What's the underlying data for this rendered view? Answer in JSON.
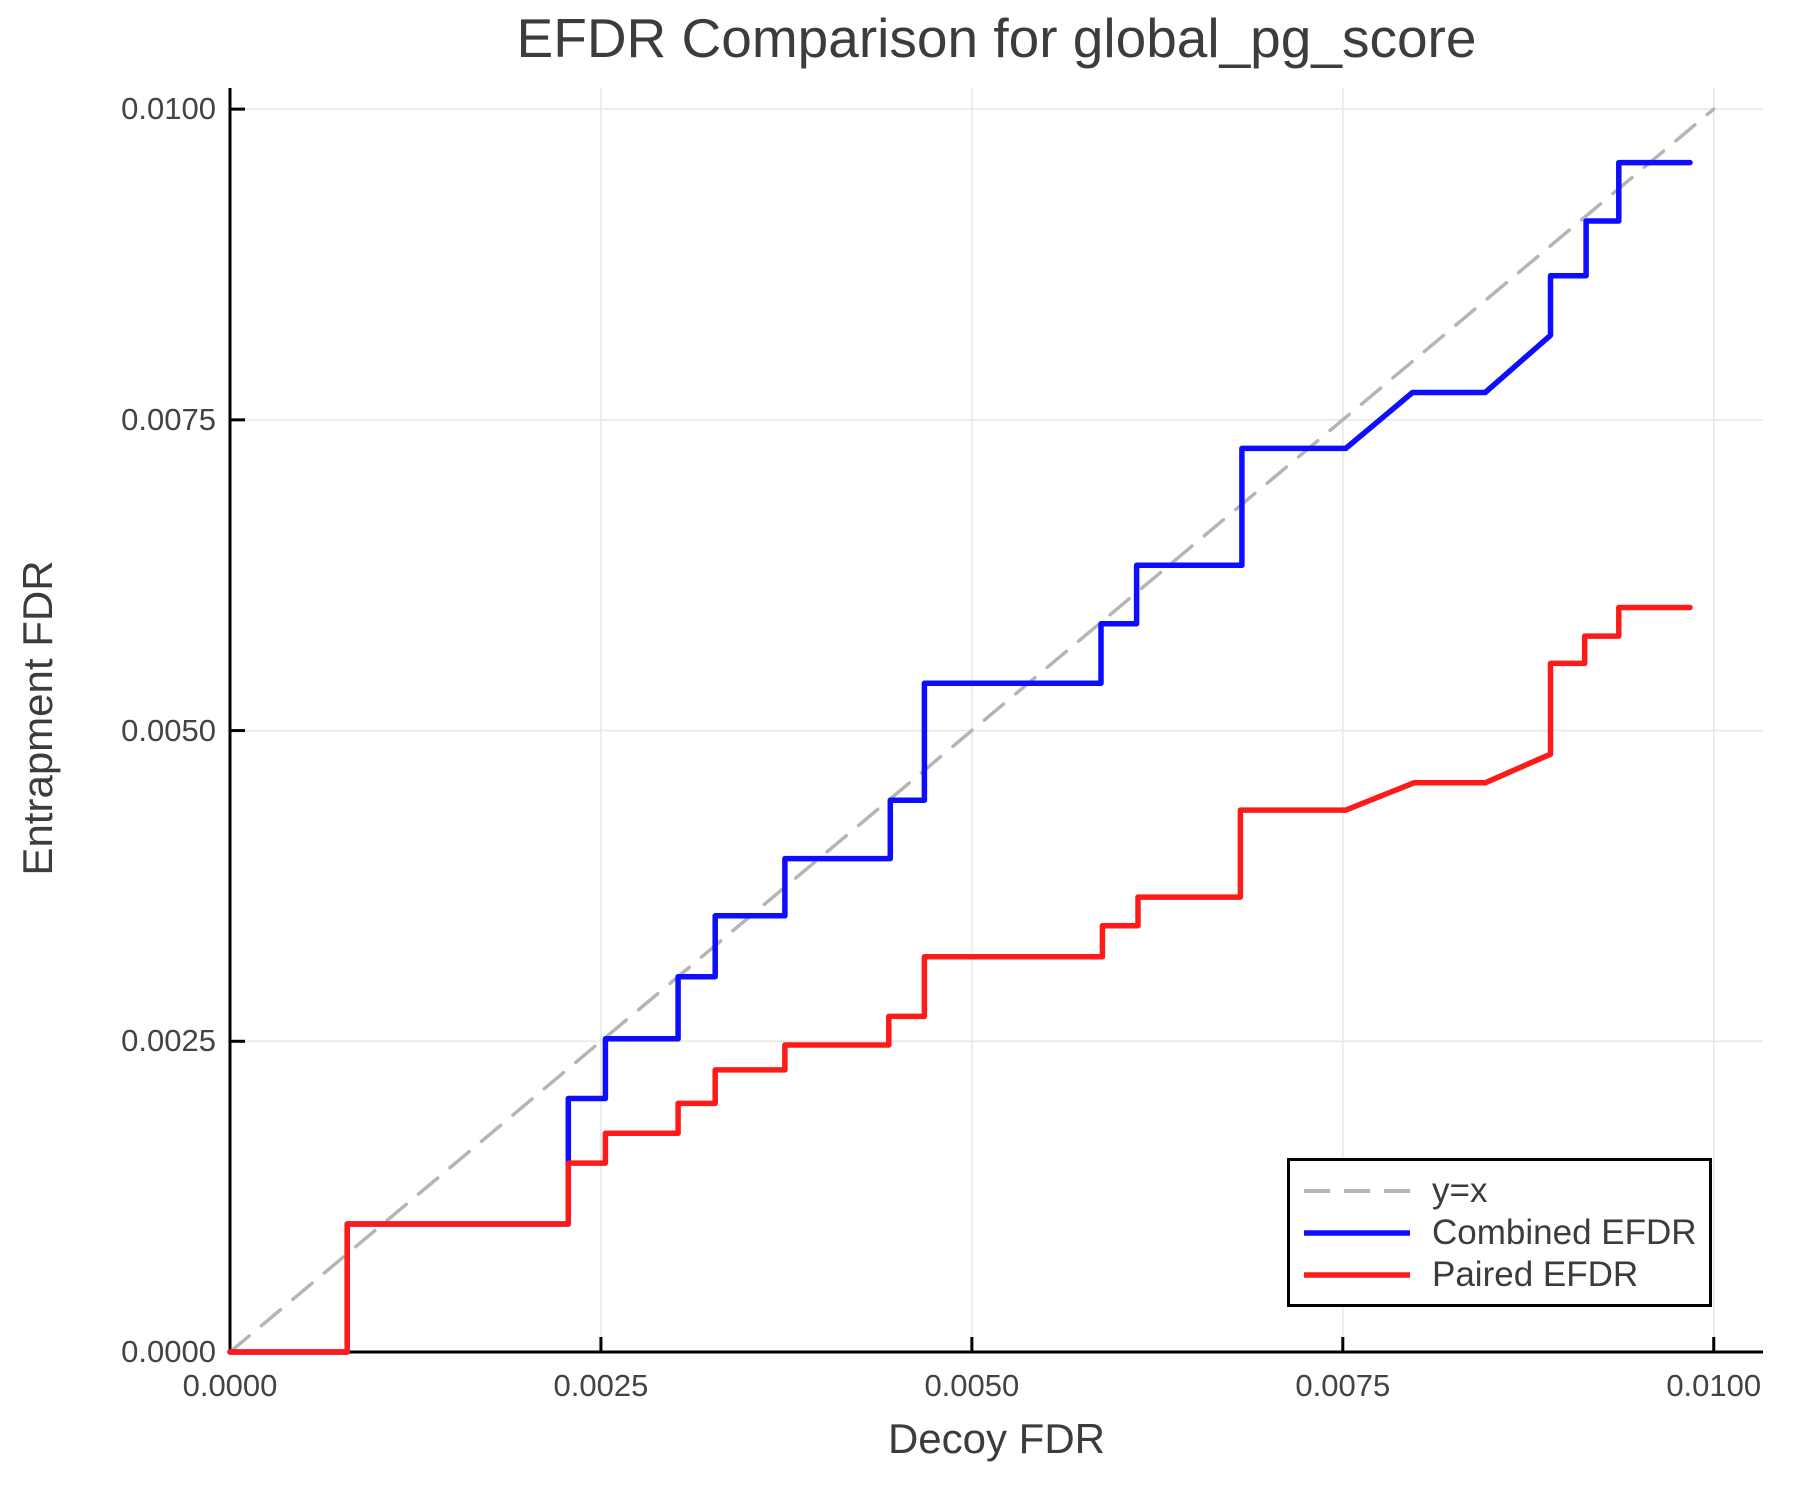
{
  "figure": {
    "background": "#ffffff"
  },
  "chart_data": {
    "type": "line",
    "title": "EFDR Comparison for global_pg_score",
    "xlabel": "Decoy FDR",
    "ylabel": "Entrapment FDR",
    "xlim": [
      0,
      0.010332
    ],
    "ylim": [
      0,
      0.01017
    ],
    "grid": true,
    "legend_position": "bottom-right",
    "colors": {
      "grid": "#e6e6e6",
      "axis": "#000000",
      "text": "#3c3c3c",
      "tick_text": "#434343",
      "reference": "#b5b5b5",
      "combined": "#0d0dff",
      "paired": "#ff1a1a",
      "legend_border": "#000000",
      "legend_background": "#ffffff"
    },
    "x_ticks": {
      "values": [
        0,
        0.0025,
        0.005,
        0.0075,
        0.01
      ],
      "labels": [
        "0.0000",
        "0.0025",
        "0.0050",
        "0.0075",
        "0.0100"
      ]
    },
    "y_ticks": {
      "values": [
        0,
        0.0025,
        0.005,
        0.0075,
        0.01
      ],
      "labels": [
        "0.0000",
        "0.0025",
        "0.0050",
        "0.0075",
        "0.0100"
      ]
    },
    "series": [
      {
        "name": "y=x",
        "role": "reference",
        "color": "#b5b5b5",
        "dashed": true,
        "width": 3.5,
        "points": [
          [
            0,
            0
          ],
          [
            0.01,
            0.01
          ]
        ]
      },
      {
        "name": "Combined EFDR",
        "role": "combined",
        "color": "#0d0dff",
        "dashed": false,
        "width": 5.5,
        "points": [
          [
            0.0,
            0.0
          ],
          [
            0.00079,
            0.0
          ],
          [
            0.00079,
            0.00103
          ],
          [
            0.00228,
            0.00103
          ],
          [
            0.00228,
            0.00204
          ],
          [
            0.00253,
            0.00204
          ],
          [
            0.00253,
            0.00252
          ],
          [
            0.00302,
            0.00252
          ],
          [
            0.00302,
            0.00302
          ],
          [
            0.00327,
            0.00302
          ],
          [
            0.00327,
            0.00351
          ],
          [
            0.00374,
            0.00351
          ],
          [
            0.00374,
            0.00397
          ],
          [
            0.00445,
            0.00397
          ],
          [
            0.00445,
            0.00444
          ],
          [
            0.00468,
            0.00444
          ],
          [
            0.00468,
            0.00538
          ],
          [
            0.00587,
            0.00538
          ],
          [
            0.00587,
            0.00586
          ],
          [
            0.00611,
            0.00586
          ],
          [
            0.00611,
            0.00633
          ],
          [
            0.00682,
            0.00633
          ],
          [
            0.00682,
            0.00727
          ],
          [
            0.00752,
            0.00727
          ],
          [
            0.00797,
            0.00772
          ],
          [
            0.00846,
            0.00772
          ],
          [
            0.0089,
            0.00818
          ],
          [
            0.0089,
            0.00866
          ],
          [
            0.00914,
            0.00866
          ],
          [
            0.00914,
            0.0091
          ],
          [
            0.00936,
            0.0091
          ],
          [
            0.00936,
            0.00957
          ],
          [
            0.00984,
            0.00957
          ]
        ]
      },
      {
        "name": "Paired EFDR",
        "role": "paired",
        "color": "#ff1a1a",
        "dashed": false,
        "width": 5.5,
        "points": [
          [
            0.0,
            0.0
          ],
          [
            0.00079,
            0.0
          ],
          [
            0.00079,
            0.00103
          ],
          [
            0.00228,
            0.00103
          ],
          [
            0.00228,
            0.00152
          ],
          [
            0.00253,
            0.00152
          ],
          [
            0.00253,
            0.00176
          ],
          [
            0.00302,
            0.00176
          ],
          [
            0.00302,
            0.002
          ],
          [
            0.00327,
            0.002
          ],
          [
            0.00327,
            0.00227
          ],
          [
            0.00374,
            0.00227
          ],
          [
            0.00374,
            0.00247
          ],
          [
            0.00444,
            0.00247
          ],
          [
            0.00444,
            0.0027
          ],
          [
            0.00468,
            0.0027
          ],
          [
            0.00468,
            0.00318
          ],
          [
            0.00588,
            0.00318
          ],
          [
            0.00588,
            0.00343
          ],
          [
            0.00612,
            0.00343
          ],
          [
            0.00612,
            0.00366
          ],
          [
            0.00681,
            0.00366
          ],
          [
            0.00681,
            0.00436
          ],
          [
            0.00752,
            0.00436
          ],
          [
            0.00798,
            0.00458
          ],
          [
            0.00846,
            0.00458
          ],
          [
            0.0089,
            0.00481
          ],
          [
            0.0089,
            0.00554
          ],
          [
            0.00913,
            0.00554
          ],
          [
            0.00913,
            0.00576
          ],
          [
            0.00936,
            0.00576
          ],
          [
            0.00936,
            0.00599
          ],
          [
            0.00984,
            0.00599
          ]
        ]
      }
    ]
  }
}
